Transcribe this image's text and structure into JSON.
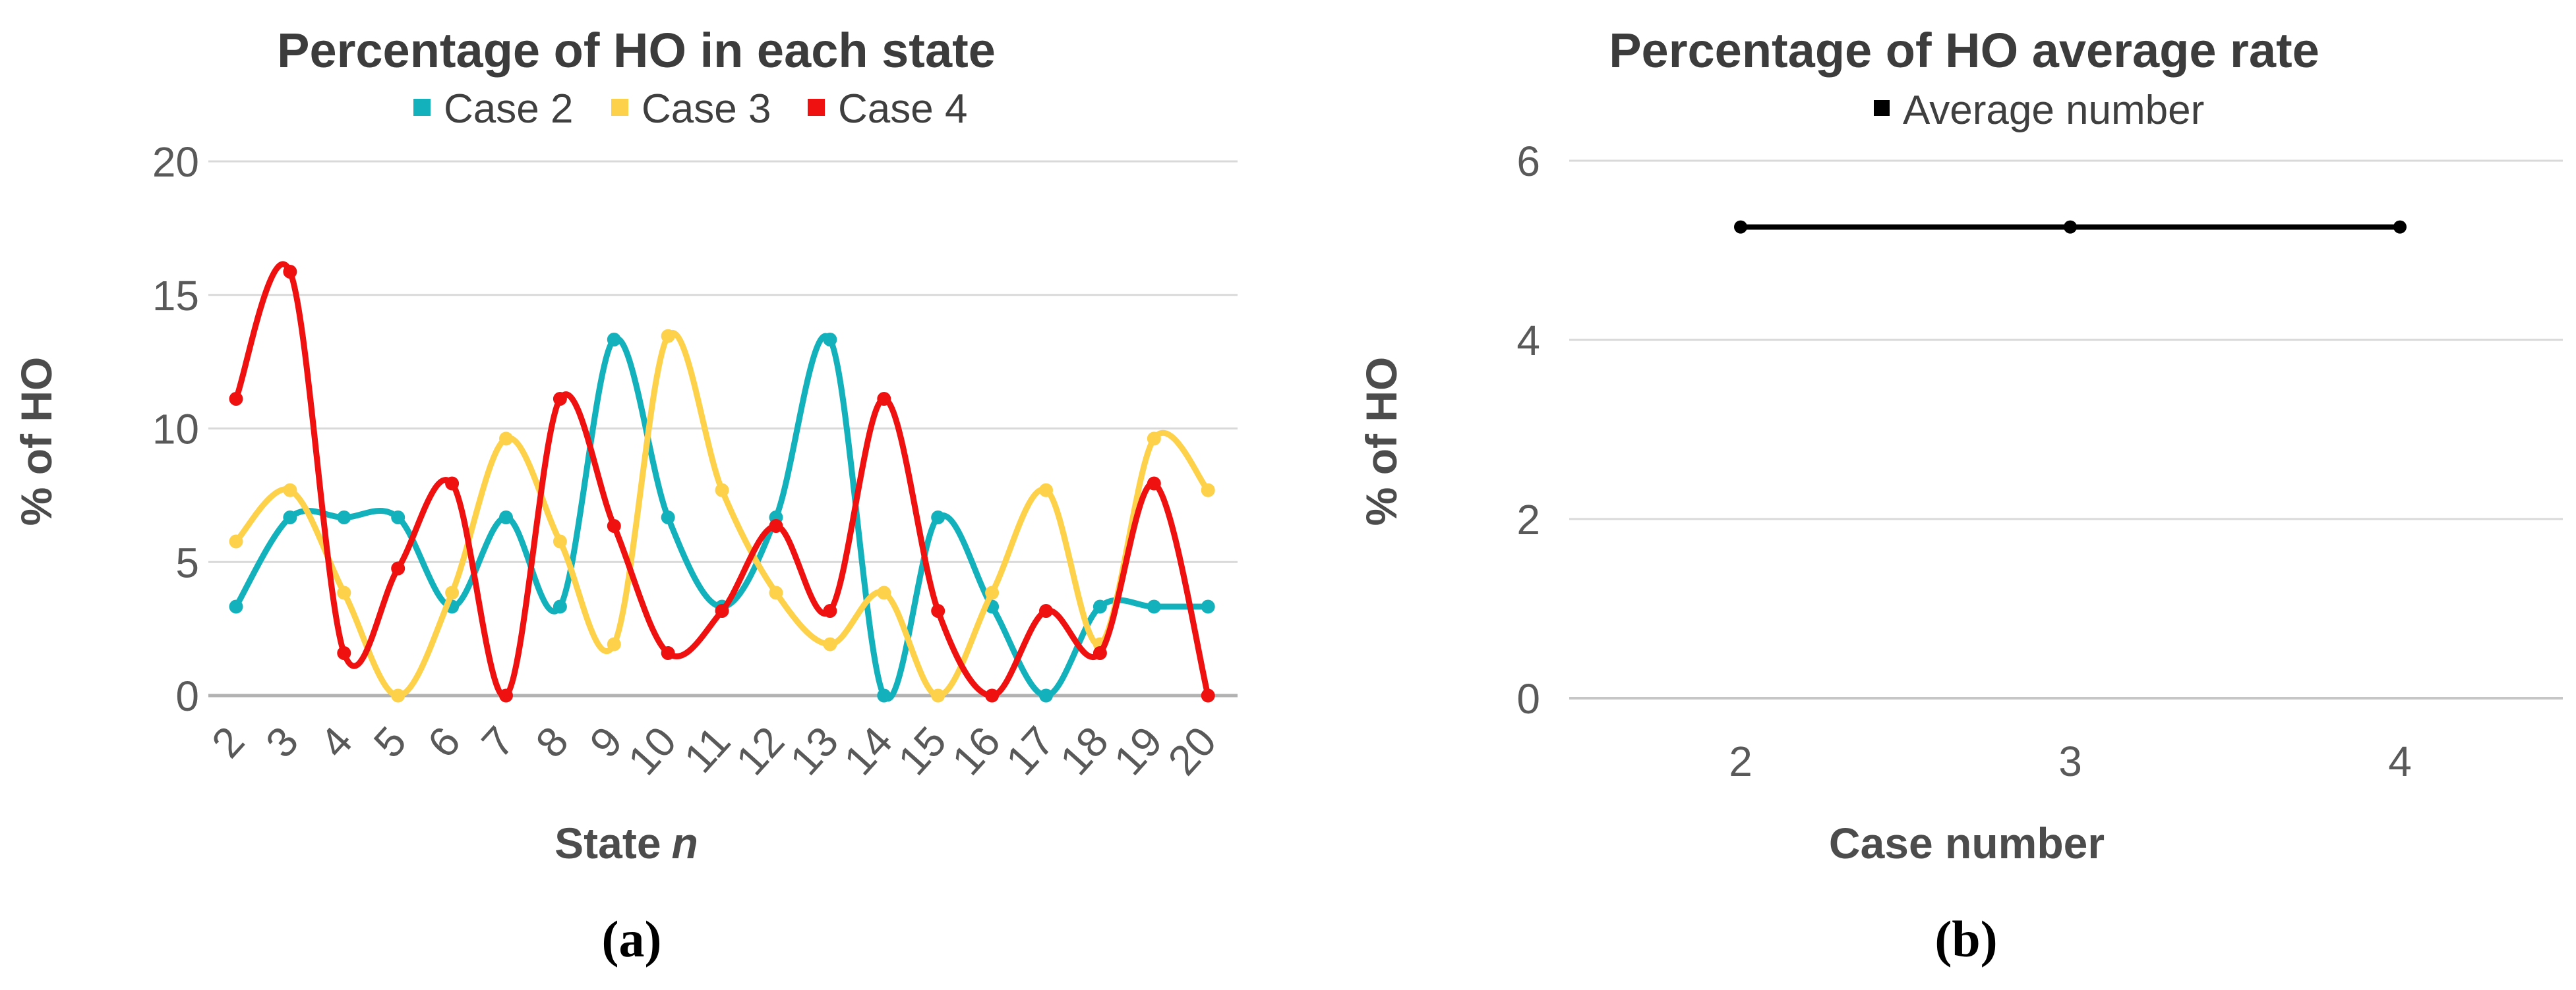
{
  "panel_a": {
    "caption": "(a)",
    "xlabel_text": "State",
    "xlabel_italic": "n"
  },
  "panel_b": {
    "caption": "(b)"
  },
  "chart_data": [
    {
      "type": "line",
      "title": "Percentage of HO in each state",
      "xlabel": "State n",
      "ylabel": "% of HO",
      "x": [
        2,
        3,
        4,
        5,
        6,
        7,
        8,
        9,
        10,
        11,
        12,
        13,
        14,
        15,
        16,
        17,
        18,
        19,
        20
      ],
      "series": [
        {
          "name": "Case 2",
          "color": "#13B1BB",
          "values": [
            3.33,
            6.67,
            6.67,
            6.67,
            3.33,
            6.67,
            3.33,
            13.33,
            6.67,
            3.33,
            6.67,
            13.33,
            0,
            6.67,
            3.33,
            0,
            3.33,
            3.33,
            3.33
          ]
        },
        {
          "name": "Case 3",
          "color": "#FDD24A",
          "values": [
            5.77,
            7.69,
            3.85,
            0,
            3.85,
            9.62,
            5.77,
            1.92,
            13.46,
            7.69,
            3.85,
            1.92,
            3.85,
            0,
            3.85,
            7.69,
            1.92,
            9.62,
            7.69
          ]
        },
        {
          "name": "Case 4",
          "color": "#EF1010",
          "values": [
            11.11,
            15.87,
            1.59,
            4.76,
            7.94,
            0,
            11.11,
            6.35,
            1.59,
            3.17,
            6.35,
            3.17,
            11.11,
            3.17,
            0,
            3.17,
            1.59,
            7.94,
            0
          ]
        }
      ],
      "ylim": [
        0,
        20
      ],
      "yticks": [
        0,
        5,
        10,
        15,
        20
      ],
      "legend_position": "top",
      "grid": true,
      "smooth": true,
      "marker": "circle"
    },
    {
      "type": "line",
      "title": "Percentage of HO average rate",
      "xlabel": "Case number",
      "ylabel": "% of HO",
      "x": [
        2,
        3,
        4
      ],
      "series": [
        {
          "name": "Average number",
          "color": "#000000",
          "values": [
            5.26,
            5.26,
            5.26
          ]
        }
      ],
      "ylim": [
        0,
        6
      ],
      "yticks": [
        0,
        2,
        4,
        6
      ],
      "legend_position": "top",
      "grid": true,
      "smooth": false,
      "marker": "circle"
    }
  ]
}
